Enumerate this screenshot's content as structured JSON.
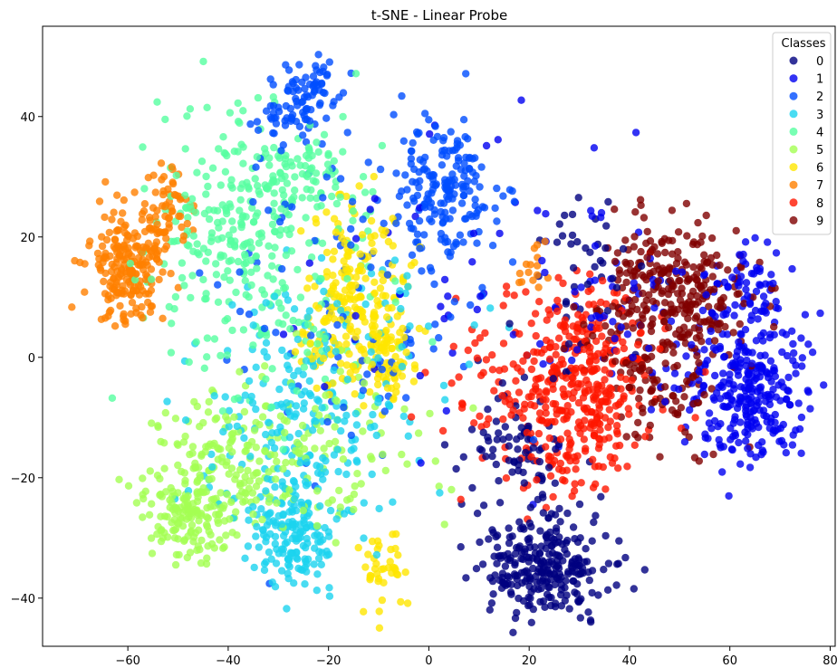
{
  "chart_data": {
    "type": "scatter",
    "title": "t-SNE - Linear Probe",
    "xlabel": "",
    "ylabel": "",
    "xlim": [
      -77,
      81
    ],
    "ylim": [
      -48,
      55
    ],
    "xticks": [
      -60,
      -40,
      -20,
      0,
      20,
      40,
      60,
      80
    ],
    "yticks": [
      -40,
      -20,
      0,
      20,
      40
    ],
    "xtick_labels": [
      "−60",
      "−40",
      "−20",
      "0",
      "20",
      "40",
      "60",
      "80"
    ],
    "ytick_labels": [
      "−40",
      "−20",
      "0",
      "20",
      "40"
    ],
    "grid": false,
    "legend": {
      "title": "Classes",
      "placement": "top-right",
      "entries": [
        "0",
        "1",
        "2",
        "3",
        "4",
        "5",
        "6",
        "7",
        "8",
        "9"
      ]
    },
    "series": [
      {
        "name": "0",
        "color": "#00007f",
        "clusters": [
          {
            "cx": 23,
            "cy": -35,
            "sx": 6,
            "sy": 4.5,
            "n": 260
          },
          {
            "cx": 18,
            "cy": -15,
            "sx": 6,
            "sy": 7,
            "n": 90
          },
          {
            "cx": 30,
            "cy": 15,
            "sx": 6,
            "sy": 6,
            "n": 40
          }
        ]
      },
      {
        "name": "1",
        "color": "#0000f1",
        "clusters": [
          {
            "cx": 63,
            "cy": -5,
            "sx": 6,
            "sy": 6,
            "n": 300
          },
          {
            "cx": 64,
            "cy": 12,
            "sx": 4,
            "sy": 3,
            "n": 60
          },
          {
            "cx": 38,
            "cy": 10,
            "sx": 10,
            "sy": 10,
            "n": 60
          },
          {
            "cx": 0,
            "cy": 10,
            "sx": 18,
            "sy": 18,
            "n": 40
          }
        ]
      },
      {
        "name": "2",
        "color": "#004dff",
        "clusters": [
          {
            "cx": 3,
            "cy": 28,
            "sx": 5,
            "sy": 5,
            "n": 180
          },
          {
            "cx": -23,
            "cy": 45,
            "sx": 3,
            "sy": 3,
            "n": 60
          },
          {
            "cx": -29,
            "cy": 40,
            "sx": 3,
            "sy": 2.5,
            "n": 40
          },
          {
            "cx": -15,
            "cy": 10,
            "sx": 15,
            "sy": 14,
            "n": 110
          }
        ]
      },
      {
        "name": "3",
        "color": "#29ffce",
        "display_color": "#1bd3ef",
        "clusters": [
          {
            "cx": -27,
            "cy": -30,
            "sx": 4,
            "sy": 4,
            "n": 150
          },
          {
            "cx": -25,
            "cy": -12,
            "sx": 10,
            "sy": 9,
            "n": 200
          },
          {
            "cx": -15,
            "cy": 5,
            "sx": 12,
            "sy": 8,
            "n": 60
          }
        ]
      },
      {
        "name": "4",
        "color": "#56ffa0",
        "clusters": [
          {
            "cx": -38,
            "cy": 22,
            "sx": 9,
            "sy": 9,
            "n": 230
          },
          {
            "cx": -26,
            "cy": 30,
            "sx": 6,
            "sy": 4,
            "n": 90
          },
          {
            "cx": -30,
            "cy": 5,
            "sx": 12,
            "sy": 10,
            "n": 70
          }
        ]
      },
      {
        "name": "5",
        "color": "#a4ff53",
        "clusters": [
          {
            "cx": -48,
            "cy": -27,
            "sx": 4,
            "sy": 3.5,
            "n": 140
          },
          {
            "cx": -40,
            "cy": -17,
            "sx": 8,
            "sy": 5,
            "n": 160
          },
          {
            "cx": -18,
            "cy": -15,
            "sx": 10,
            "sy": 8,
            "n": 90
          }
        ]
      },
      {
        "name": "6",
        "color": "#ffe600",
        "clusters": [
          {
            "cx": -15,
            "cy": 6,
            "sx": 5,
            "sy": 6,
            "n": 190
          },
          {
            "cx": -8,
            "cy": 0,
            "sx": 3,
            "sy": 4,
            "n": 60
          },
          {
            "cx": -9,
            "cy": -35,
            "sx": 2.5,
            "sy": 3,
            "n": 40
          },
          {
            "cx": -16,
            "cy": 20,
            "sx": 5,
            "sy": 4,
            "n": 40
          }
        ]
      },
      {
        "name": "7",
        "color": "#ff8000",
        "clusters": [
          {
            "cx": -60,
            "cy": 15,
            "sx": 4,
            "sy": 5,
            "n": 210
          },
          {
            "cx": -52,
            "cy": 25,
            "sx": 3,
            "sy": 4,
            "n": 60
          },
          {
            "cx": 20,
            "cy": 14,
            "sx": 2,
            "sy": 2,
            "n": 15
          }
        ]
      },
      {
        "name": "8",
        "color": "#ff1600",
        "clusters": [
          {
            "cx": 30,
            "cy": -3,
            "sx": 7,
            "sy": 7,
            "n": 310
          },
          {
            "cx": 28,
            "cy": -15,
            "sx": 7,
            "sy": 5,
            "n": 80
          },
          {
            "cx": 12,
            "cy": -5,
            "sx": 6,
            "sy": 6,
            "n": 40
          }
        ]
      },
      {
        "name": "9",
        "color": "#7f0000",
        "clusters": [
          {
            "cx": 50,
            "cy": 12,
            "sx": 7,
            "sy": 6,
            "n": 240
          },
          {
            "cx": 42,
            "cy": 3,
            "sx": 6,
            "sy": 5,
            "n": 80
          },
          {
            "cx": 48,
            "cy": -8,
            "sx": 5,
            "sy": 4,
            "n": 60
          }
        ]
      }
    ]
  }
}
